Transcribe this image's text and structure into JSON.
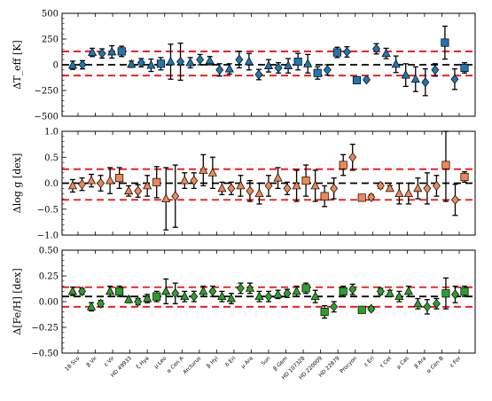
{
  "chart_data": [
    {
      "type": "scatter",
      "id": "teff",
      "ylabel": "ΔT_eff [K]",
      "ylim": [
        -500,
        500
      ],
      "yticks": [
        -500,
        -250,
        0,
        250,
        500
      ],
      "yticklabels": [
        "−500",
        "−250",
        "0",
        "250",
        "500"
      ],
      "zero_line": 0,
      "bounds": [
        130,
        -105
      ],
      "points": [
        {
          "v": -5,
          "err": 40,
          "m": "tri",
          "c": "#1f77b4"
        },
        {
          "v": 0,
          "err": 40,
          "m": "dia",
          "c": "#1f77b4"
        },
        {
          "v": 120,
          "err": 40,
          "m": "tri",
          "c": "#1f77b4"
        },
        {
          "v": 110,
          "err": 45,
          "m": "dia",
          "c": "#1f77b4"
        },
        {
          "v": 125,
          "err": 60,
          "m": "tri",
          "c": "#1f77b4"
        },
        {
          "v": 130,
          "err": 50,
          "m": "sq",
          "c": "#1f77b4"
        },
        {
          "v": 5,
          "err": 30,
          "m": "tri",
          "c": "#1f77b4"
        },
        {
          "v": 20,
          "err": 40,
          "m": "dia",
          "c": "#1f77b4"
        },
        {
          "v": -5,
          "err": 60,
          "m": "tri",
          "c": "#1f77b4"
        },
        {
          "v": 10,
          "err": 60,
          "m": "sq",
          "c": "#1f77b4"
        },
        {
          "v": 30,
          "err": 170,
          "m": "tri",
          "c": "#1f77b4"
        },
        {
          "v": 30,
          "err": 180,
          "m": "dia",
          "c": "#1f77b4"
        },
        {
          "v": 20,
          "err": 50,
          "m": "tri",
          "c": "#1f77b4"
        },
        {
          "v": 50,
          "err": 50,
          "m": "dia",
          "c": "#1f77b4"
        },
        {
          "v": 40,
          "err": 40,
          "m": "tri",
          "c": "#1f77b4"
        },
        {
          "v": -50,
          "err": 60,
          "m": "dia",
          "c": "#1f77b4"
        },
        {
          "v": -40,
          "err": 50,
          "m": "tri",
          "c": "#1f77b4"
        },
        {
          "v": 50,
          "err": 80,
          "m": "dia",
          "c": "#1f77b4"
        },
        {
          "v": 30,
          "err": 80,
          "m": "tri",
          "c": "#1f77b4"
        },
        {
          "v": -95,
          "err": 50,
          "m": "dia",
          "c": "#1f77b4"
        },
        {
          "v": -10,
          "err": 60,
          "m": "tri",
          "c": "#1f77b4"
        },
        {
          "v": -30,
          "err": 50,
          "m": "dia",
          "c": "#1f77b4"
        },
        {
          "v": -10,
          "err": 70,
          "m": "tri",
          "c": "#1f77b4"
        },
        {
          "v": 30,
          "err": 80,
          "m": "sq",
          "c": "#1f77b4"
        },
        {
          "v": 10,
          "err": 90,
          "m": "tri",
          "c": "#1f77b4"
        },
        {
          "v": -80,
          "err": 60,
          "m": "sq",
          "c": "#1f77b4"
        },
        {
          "v": -50,
          "err": 50,
          "m": "dia",
          "c": "#1f77b4"
        },
        {
          "v": 120,
          "err": 50,
          "m": "sq",
          "c": "#1f77b4"
        },
        {
          "v": 125,
          "err": 50,
          "m": "dia",
          "c": "#1f77b4"
        },
        {
          "v": -150,
          "err": 15,
          "m": "sq",
          "c": "#1f77b4"
        },
        {
          "v": -145,
          "err": 15,
          "m": "dia",
          "c": "#1f77b4"
        },
        {
          "v": 155,
          "err": 50,
          "m": "dia",
          "c": "#1f77b4"
        },
        {
          "v": 110,
          "err": 50,
          "m": "tri",
          "c": "#1f77b4"
        },
        {
          "v": 5,
          "err": 80,
          "m": "tri",
          "c": "#1f77b4"
        },
        {
          "v": -100,
          "err": 110,
          "m": "tri",
          "c": "#1f77b4"
        },
        {
          "v": -140,
          "err": 120,
          "m": "tri",
          "c": "#1f77b4"
        },
        {
          "v": -170,
          "err": 130,
          "m": "dia",
          "c": "#1f77b4"
        },
        {
          "v": -50,
          "err": 60,
          "m": "dia",
          "c": "#1f77b4"
        },
        {
          "v": 215,
          "err": 160,
          "m": "sq",
          "c": "#1f77b4"
        },
        {
          "v": -140,
          "err": 100,
          "m": "dia",
          "c": "#1f77b4"
        },
        {
          "v": -30,
          "err": 50,
          "m": "sq",
          "c": "#1f77b4"
        }
      ]
    },
    {
      "type": "scatter",
      "id": "logg",
      "ylabel": "Δlog g [dex]",
      "ylim": [
        -1.0,
        1.0
      ],
      "yticks": [
        -1.0,
        -0.5,
        0.0,
        0.5,
        1.0
      ],
      "yticklabels": [
        "−1.0",
        "−0.5",
        "0.0",
        "0.5",
        "1.0"
      ],
      "zero_line": 0,
      "bounds": [
        0.27,
        -0.32
      ],
      "points": [
        {
          "v": -0.05,
          "err": 0.12,
          "m": "tri",
          "c": "#ee8855"
        },
        {
          "v": -0.02,
          "err": 0.12,
          "m": "dia",
          "c": "#ee8855"
        },
        {
          "v": 0.05,
          "err": 0.12,
          "m": "tri",
          "c": "#ee8855"
        },
        {
          "v": 0.0,
          "err": 0.15,
          "m": "dia",
          "c": "#ee8855"
        },
        {
          "v": 0.05,
          "err": 0.25,
          "m": "tri",
          "c": "#ee8855"
        },
        {
          "v": 0.1,
          "err": 0.2,
          "m": "sq",
          "c": "#ee8855"
        },
        {
          "v": -0.15,
          "err": 0.1,
          "m": "tri",
          "c": "#ee8855"
        },
        {
          "v": -0.15,
          "err": 0.12,
          "m": "dia",
          "c": "#ee8855"
        },
        {
          "v": -0.05,
          "err": 0.2,
          "m": "tri",
          "c": "#ee8855"
        },
        {
          "v": 0.02,
          "err": 0.3,
          "m": "sq",
          "c": "#ee8855"
        },
        {
          "v": -0.3,
          "err": 0.6,
          "m": "tri",
          "c": "#ee8855"
        },
        {
          "v": -0.25,
          "err": 0.6,
          "m": "dia",
          "c": "#ee8855"
        },
        {
          "v": 0.05,
          "err": 0.15,
          "m": "tri",
          "c": "#ee8855"
        },
        {
          "v": 0.05,
          "err": 0.15,
          "m": "dia",
          "c": "#ee8855"
        },
        {
          "v": 0.25,
          "err": 0.3,
          "m": "tri",
          "c": "#ee8855"
        },
        {
          "v": 0.2,
          "err": 0.3,
          "m": "tri",
          "c": "#ee8855"
        },
        {
          "v": -0.1,
          "err": 0.12,
          "m": "tri",
          "c": "#ee8855"
        },
        {
          "v": -0.1,
          "err": 0.12,
          "m": "dia",
          "c": "#ee8855"
        },
        {
          "v": -0.05,
          "err": 0.2,
          "m": "tri",
          "c": "#ee8855"
        },
        {
          "v": -0.15,
          "err": 0.2,
          "m": "dia",
          "c": "#ee8855"
        },
        {
          "v": -0.2,
          "err": 0.2,
          "m": "tri",
          "c": "#ee8855"
        },
        {
          "v": -0.05,
          "err": 0.2,
          "m": "dia",
          "c": "#ee8855"
        },
        {
          "v": 0.1,
          "err": 0.2,
          "m": "tri",
          "c": "#ee8855"
        },
        {
          "v": -0.1,
          "err": 0.12,
          "m": "dia",
          "c": "#ee8855"
        },
        {
          "v": -0.05,
          "err": 0.3,
          "m": "tri",
          "c": "#ee8855"
        },
        {
          "v": 0.05,
          "err": 0.3,
          "m": "sq",
          "c": "#ee8855"
        },
        {
          "v": -0.05,
          "err": 0.3,
          "m": "tri",
          "c": "#ee8855"
        },
        {
          "v": -0.25,
          "err": 0.2,
          "m": "sq",
          "c": "#ee8855"
        },
        {
          "v": -0.1,
          "err": 0.2,
          "m": "dia",
          "c": "#ee8855"
        },
        {
          "v": 0.35,
          "err": 0.2,
          "m": "sq",
          "c": "#ee8855"
        },
        {
          "v": 0.5,
          "err": 0.25,
          "m": "dia",
          "c": "#ee8855"
        },
        {
          "v": -0.28,
          "err": 0.05,
          "m": "sq",
          "c": "#ee8855"
        },
        {
          "v": -0.27,
          "err": 0.05,
          "m": "dia",
          "c": "#ee8855"
        },
        {
          "v": -0.05,
          "err": 0.05,
          "m": "dia",
          "c": "#ee8855"
        },
        {
          "v": -0.1,
          "err": 0.05,
          "m": "tri",
          "c": "#ee8855"
        },
        {
          "v": -0.2,
          "err": 0.2,
          "m": "tri",
          "c": "#ee8855"
        },
        {
          "v": -0.2,
          "err": 0.2,
          "m": "tri",
          "c": "#ee8855"
        },
        {
          "v": -0.1,
          "err": 0.2,
          "m": "tri",
          "c": "#ee8855"
        },
        {
          "v": -0.1,
          "err": 0.3,
          "m": "dia",
          "c": "#ee8855"
        },
        {
          "v": -0.05,
          "err": 0.2,
          "m": "dia",
          "c": "#ee8855"
        },
        {
          "v": 0.35,
          "err": 0.7,
          "m": "sq",
          "c": "#ee8855"
        },
        {
          "v": -0.32,
          "err": 0.3,
          "m": "dia",
          "c": "#ee8855"
        },
        {
          "v": 0.12,
          "err": 0.1,
          "m": "sq",
          "c": "#ee8855"
        }
      ]
    },
    {
      "type": "scatter",
      "id": "feh",
      "ylabel": "Δ[Fe/H] [dex]",
      "ylim": [
        -0.5,
        0.5
      ],
      "yticks": [
        -0.5,
        -0.25,
        0.0,
        0.25,
        0.5
      ],
      "yticklabels": [
        "−0.50",
        "−0.25",
        "0.00",
        "0.25",
        "0.50"
      ],
      "zero_line": 0.05,
      "bounds": [
        0.14,
        -0.05
      ],
      "points": [
        {
          "v": 0.1,
          "err": 0.04,
          "m": "tri",
          "c": "#2ca02c"
        },
        {
          "v": 0.1,
          "err": 0.03,
          "m": "dia",
          "c": "#2ca02c"
        },
        {
          "v": -0.05,
          "err": 0.04,
          "m": "tri",
          "c": "#2ca02c"
        },
        {
          "v": -0.02,
          "err": 0.03,
          "m": "dia",
          "c": "#2ca02c"
        },
        {
          "v": 0.1,
          "err": 0.05,
          "m": "tri",
          "c": "#2ca02c"
        },
        {
          "v": 0.1,
          "err": 0.05,
          "m": "sq",
          "c": "#2ca02c"
        },
        {
          "v": 0.02,
          "err": 0.03,
          "m": "tri",
          "c": "#2ca02c"
        },
        {
          "v": 0.0,
          "err": 0.03,
          "m": "dia",
          "c": "#2ca02c"
        },
        {
          "v": 0.03,
          "err": 0.04,
          "m": "tri",
          "c": "#2ca02c"
        },
        {
          "v": 0.05,
          "err": 0.05,
          "m": "sq",
          "c": "#2ca02c"
        },
        {
          "v": 0.1,
          "err": 0.12,
          "m": "tri",
          "c": "#2ca02c"
        },
        {
          "v": 0.08,
          "err": 0.1,
          "m": "dia",
          "c": "#2ca02c"
        },
        {
          "v": 0.05,
          "err": 0.05,
          "m": "tri",
          "c": "#2ca02c"
        },
        {
          "v": 0.05,
          "err": 0.05,
          "m": "dia",
          "c": "#2ca02c"
        },
        {
          "v": 0.1,
          "err": 0.05,
          "m": "tri",
          "c": "#2ca02c"
        },
        {
          "v": 0.1,
          "err": 0.05,
          "m": "dia",
          "c": "#2ca02c"
        },
        {
          "v": 0.05,
          "err": 0.05,
          "m": "tri",
          "c": "#2ca02c"
        },
        {
          "v": 0.03,
          "err": 0.05,
          "m": "tri",
          "c": "#2ca02c"
        },
        {
          "v": 0.13,
          "err": 0.05,
          "m": "dia",
          "c": "#2ca02c"
        },
        {
          "v": 0.13,
          "err": 0.05,
          "m": "tri",
          "c": "#2ca02c"
        },
        {
          "v": 0.05,
          "err": 0.05,
          "m": "tri",
          "c": "#2ca02c"
        },
        {
          "v": 0.05,
          "err": 0.05,
          "m": "dia",
          "c": "#2ca02c"
        },
        {
          "v": 0.07,
          "err": 0.04,
          "m": "tri",
          "c": "#2ca02c"
        },
        {
          "v": 0.08,
          "err": 0.04,
          "m": "dia",
          "c": "#2ca02c"
        },
        {
          "v": 0.1,
          "err": 0.05,
          "m": "tri",
          "c": "#2ca02c"
        },
        {
          "v": 0.13,
          "err": 0.05,
          "m": "sq",
          "c": "#2ca02c"
        },
        {
          "v": 0.05,
          "err": 0.06,
          "m": "tri",
          "c": "#2ca02c"
        },
        {
          "v": -0.1,
          "err": 0.06,
          "m": "sq",
          "c": "#2ca02c"
        },
        {
          "v": -0.05,
          "err": 0.05,
          "m": "dia",
          "c": "#2ca02c"
        },
        {
          "v": 0.1,
          "err": 0.05,
          "m": "sq",
          "c": "#2ca02c"
        },
        {
          "v": 0.12,
          "err": 0.05,
          "m": "dia",
          "c": "#2ca02c"
        },
        {
          "v": -0.08,
          "err": 0.02,
          "m": "sq",
          "c": "#2ca02c"
        },
        {
          "v": -0.07,
          "err": 0.02,
          "m": "dia",
          "c": "#2ca02c"
        },
        {
          "v": 0.1,
          "err": 0.03,
          "m": "dia",
          "c": "#2ca02c"
        },
        {
          "v": 0.08,
          "err": 0.03,
          "m": "tri",
          "c": "#2ca02c"
        },
        {
          "v": 0.05,
          "err": 0.05,
          "m": "tri",
          "c": "#2ca02c"
        },
        {
          "v": 0.1,
          "err": 0.05,
          "m": "tri",
          "c": "#2ca02c"
        },
        {
          "v": -0.02,
          "err": 0.05,
          "m": "tri",
          "c": "#2ca02c"
        },
        {
          "v": -0.05,
          "err": 0.07,
          "m": "dia",
          "c": "#2ca02c"
        },
        {
          "v": -0.02,
          "err": 0.05,
          "m": "dia",
          "c": "#2ca02c"
        },
        {
          "v": 0.08,
          "err": 0.15,
          "m": "sq",
          "c": "#2ca02c"
        },
        {
          "v": 0.07,
          "err": 0.08,
          "m": "dia",
          "c": "#2ca02c"
        },
        {
          "v": 0.1,
          "err": 0.05,
          "m": "sq",
          "c": "#2ca02c"
        }
      ]
    }
  ],
  "x_tick_labels": [
    "18 Sco",
    "β Vir",
    "ε Vir",
    "HD 49933",
    "ξ Hya",
    "μ Leo",
    "α Cen A",
    "Arcturus",
    "β Hyi",
    "δ Eri",
    "μ Ara",
    "Sun",
    "β Gem",
    "HD 107328",
    "HD 220009",
    "HD 22879",
    "Procyon",
    "ε Eri",
    "τ Cet",
    "μ Cas",
    "β Ara",
    "α Cen B",
    "ε For"
  ],
  "style": {
    "bound_color": "#ee1111",
    "zero_color": "#000000"
  }
}
